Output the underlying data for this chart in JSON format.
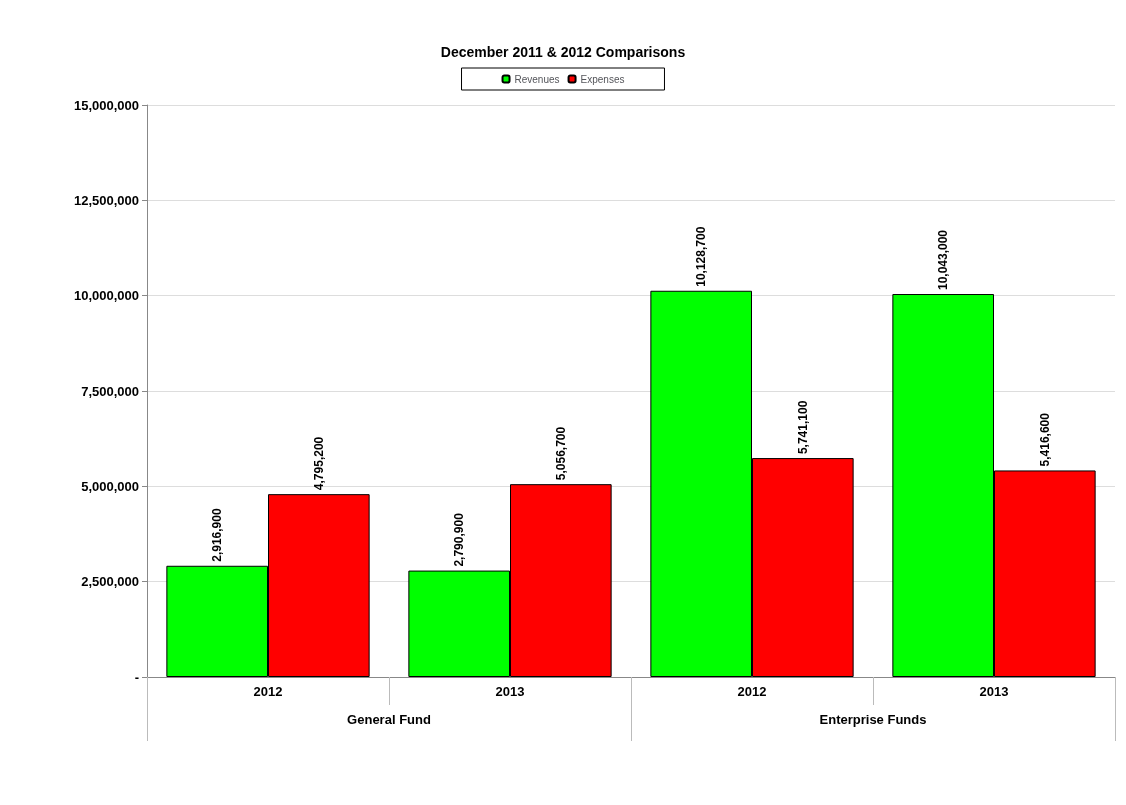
{
  "chart_data": {
    "type": "bar",
    "title": "December 2011 & 2012 Comparisons",
    "categories": [
      "2012",
      "2013",
      "2012",
      "2013"
    ],
    "series": [
      {
        "name": "Revenues",
        "color": "#00ff00",
        "values": [
          2916900,
          2790900,
          10128700,
          10043000
        ],
        "value_labels": [
          "2,916,900",
          "2,790,900",
          "10,128,700",
          "10,043,000"
        ]
      },
      {
        "name": "Expenses",
        "color": "#ff0000",
        "values": [
          4795200,
          5056700,
          5741100,
          5416600
        ],
        "value_labels": [
          "4,795,200",
          "5,056,700",
          "5,741,100",
          "5,416,600"
        ]
      }
    ],
    "ylim": [
      0,
      15000000
    ],
    "yticks": [
      {
        "value": 0,
        "label": "-"
      },
      {
        "value": 2500000,
        "label": "2,500,000"
      },
      {
        "value": 5000000,
        "label": "5,000,000"
      },
      {
        "value": 7500000,
        "label": "7,500,000"
      },
      {
        "value": 10000000,
        "label": "10,000,000"
      },
      {
        "value": 12500000,
        "label": "12,500,000"
      },
      {
        "value": 15000000,
        "label": "15,000,000"
      }
    ],
    "annotations": [
      "General Fund",
      "Enterprise Funds"
    ],
    "grid": "y",
    "legend": "top"
  }
}
